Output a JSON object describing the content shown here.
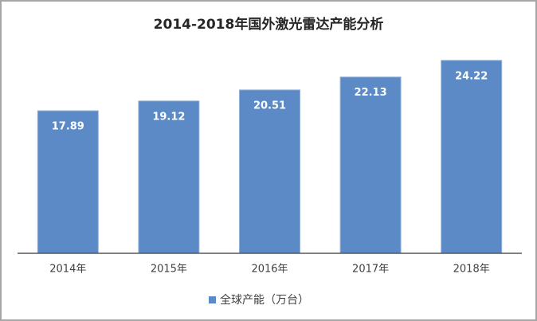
{
  "chart_data": {
    "type": "bar",
    "title": "2014-2018年国外激光雷达产能分析",
    "categories": [
      "2014年",
      "2015年",
      "2016年",
      "2017年",
      "2018年"
    ],
    "series": [
      {
        "name": "全球产能（万台）",
        "color": "#5b8ac6",
        "values": [
          17.89,
          19.12,
          20.51,
          22.13,
          24.22
        ]
      }
    ],
    "legend": "bottom"
  }
}
